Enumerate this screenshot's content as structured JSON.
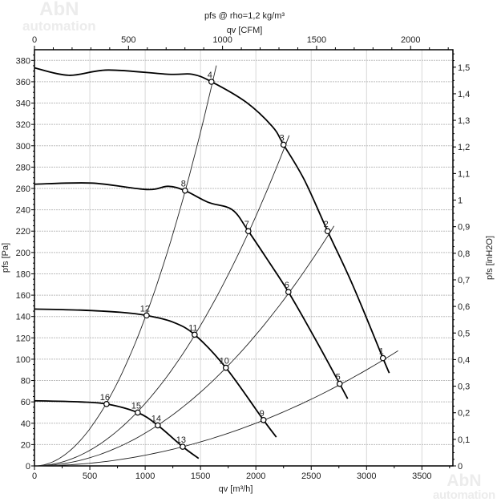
{
  "chart_data": {
    "type": "line",
    "title": "pfs @  rho=1,2 kg/m³",
    "top_axis_label": "qv [CFM]",
    "xlabel": "qv [m³/h]",
    "ylabel": "pfs [Pa]",
    "y2label": "pfs [inH2O]",
    "xlim": [
      0,
      3780
    ],
    "ylim": [
      0,
      390
    ],
    "x_ticks": [
      0,
      500,
      1000,
      1500,
      2000,
      2500,
      3000,
      3500
    ],
    "y_ticks": [
      0,
      20,
      40,
      60,
      80,
      100,
      120,
      140,
      160,
      180,
      200,
      220,
      240,
      260,
      280,
      300,
      320,
      340,
      360,
      380
    ],
    "cfm_ticks": [
      0,
      500,
      1000,
      1500,
      2000
    ],
    "cfm_to_m3h": 1.699,
    "inh2o_to_pa": 249.09,
    "inh2o_ticks": [
      "0",
      "0,1",
      "0,2",
      "0,3",
      "0,4",
      "0,5",
      "0,6",
      "0,7",
      "0,8",
      "0,9",
      "1",
      "1,1",
      "1,2",
      "1,3",
      "1,4",
      "1,5"
    ],
    "grid": true,
    "fan_curves": [
      {
        "name": "fan-curve-1",
        "x": [
          0,
          311,
          666,
          1208,
          1425,
          1599,
          1910,
          2149,
          2250,
          2438,
          2648,
          2873,
          3148,
          3205
        ],
        "y": [
          373,
          366,
          371,
          367,
          367,
          360,
          341,
          318,
          301,
          268,
          220,
          170,
          101,
          87
        ]
      },
      {
        "name": "fan-curve-2",
        "x": [
          0,
          521,
          1013,
          1208,
          1360,
          1570,
          1787,
          1932,
          2113,
          2294,
          2547,
          2757,
          2829
        ],
        "y": [
          264,
          265,
          259,
          262,
          258,
          247,
          240,
          220,
          192,
          163,
          117,
          77,
          63
        ]
      },
      {
        "name": "fan-curve-3",
        "x": [
          0,
          412,
          774,
          1013,
          1245,
          1447,
          1729,
          2069,
          2185
        ],
        "y": [
          147,
          146,
          144,
          141,
          135,
          123,
          92,
          43,
          27
        ]
      },
      {
        "name": "fan-curve-4",
        "x": [
          0,
          412,
          651,
          933,
          1114,
          1339,
          1483
        ],
        "y": [
          61,
          60,
          58,
          50,
          38,
          18,
          7
        ]
      }
    ],
    "system_curves": [
      {
        "name": "system-curve-a",
        "k": 0.000139,
        "x_max": 1643
      },
      {
        "name": "system-curve-b",
        "k": 5.85e-05,
        "x_max": 2301
      },
      {
        "name": "system-curve-c",
        "k": 3.07e-05,
        "x_max": 2706
      },
      {
        "name": "system-curve-d",
        "k": 1e-05,
        "x_max": 3285
      }
    ],
    "operating_points": [
      {
        "label": "1",
        "x": 3148,
        "y": 101
      },
      {
        "label": "2",
        "x": 2648,
        "y": 220
      },
      {
        "label": "3",
        "x": 2250,
        "y": 301
      },
      {
        "label": "4",
        "x": 1599,
        "y": 360
      },
      {
        "label": "5",
        "x": 2757,
        "y": 77
      },
      {
        "label": "6",
        "x": 2294,
        "y": 163
      },
      {
        "label": "7",
        "x": 1932,
        "y": 220
      },
      {
        "label": "8",
        "x": 1360,
        "y": 258
      },
      {
        "label": "9",
        "x": 2069,
        "y": 43
      },
      {
        "label": "10",
        "x": 1729,
        "y": 92
      },
      {
        "label": "11",
        "x": 1447,
        "y": 123
      },
      {
        "label": "12",
        "x": 1013,
        "y": 141
      },
      {
        "label": "13",
        "x": 1339,
        "y": 18
      },
      {
        "label": "14",
        "x": 1114,
        "y": 38
      },
      {
        "label": "15",
        "x": 933,
        "y": 50
      },
      {
        "label": "16",
        "x": 651,
        "y": 58
      }
    ]
  },
  "watermark": {
    "line1": "AbN",
    "line2": "automation"
  }
}
